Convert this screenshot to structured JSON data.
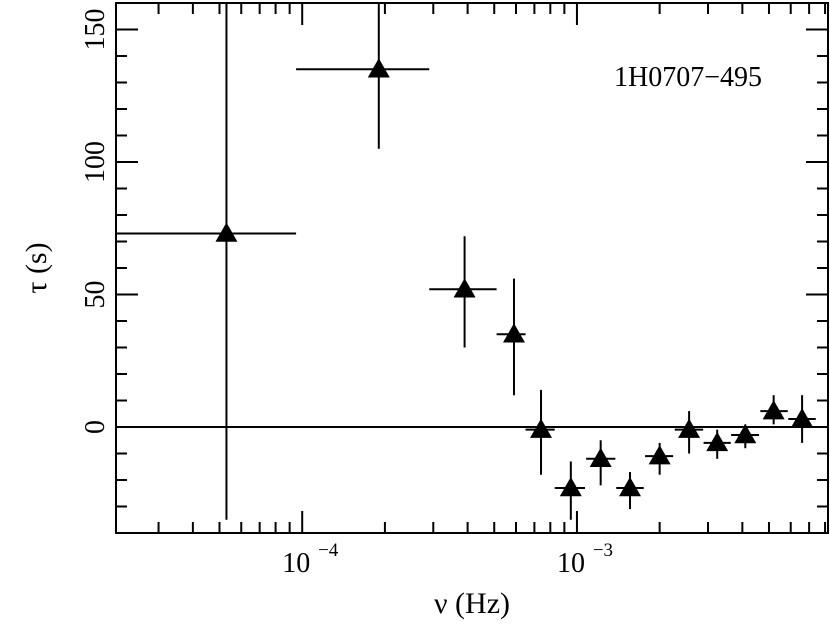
{
  "chart_data": {
    "type": "scatter",
    "title": "",
    "xlabel": "ν (Hz)",
    "ylabel": "τ (s)",
    "x_scale": "log",
    "xlim": [
      2.1e-05,
      0.0082
    ],
    "ylim": [
      -40,
      160
    ],
    "x_ticks": [
      {
        "value": 0.0001,
        "base": "10",
        "exp": "−4"
      },
      {
        "value": 0.001,
        "base": "10",
        "exp": "−3"
      }
    ],
    "y_ticks": [
      0,
      50,
      100,
      150
    ],
    "zero_line": 0,
    "annotation": "1H0707−495",
    "marker": "filled-triangle",
    "grid": false,
    "points": [
      {
        "x": 5.3e-05,
        "y": 73,
        "x_lo": 2.1e-05,
        "x_hi": 9.5e-05,
        "y_lo": -35,
        "y_hi": 160
      },
      {
        "x": 0.00019,
        "y": 135,
        "x_lo": 9.5e-05,
        "x_hi": 0.00029,
        "y_lo": 105,
        "y_hi": 160
      },
      {
        "x": 0.00039,
        "y": 52,
        "x_lo": 0.00029,
        "x_hi": 0.00051,
        "y_lo": 30,
        "y_hi": 72
      },
      {
        "x": 0.00059,
        "y": 35,
        "x_lo": 0.00051,
        "x_hi": 0.00065,
        "y_lo": 12,
        "y_hi": 56
      },
      {
        "x": 0.00074,
        "y": -1,
        "x_lo": 0.00065,
        "x_hi": 0.00083,
        "y_lo": -18,
        "y_hi": 14
      },
      {
        "x": 0.00095,
        "y": -23,
        "x_lo": 0.00083,
        "x_hi": 0.00107,
        "y_lo": -35,
        "y_hi": -13
      },
      {
        "x": 0.00122,
        "y": -12,
        "x_lo": 0.00108,
        "x_hi": 0.00138,
        "y_lo": -22,
        "y_hi": -5
      },
      {
        "x": 0.00156,
        "y": -23,
        "x_lo": 0.00139,
        "x_hi": 0.00175,
        "y_lo": -31,
        "y_hi": -17
      },
      {
        "x": 0.002,
        "y": -11,
        "x_lo": 0.00177,
        "x_hi": 0.00224,
        "y_lo": -18,
        "y_hi": -6
      },
      {
        "x": 0.00256,
        "y": -1,
        "x_lo": 0.00227,
        "x_hi": 0.00288,
        "y_lo": -10,
        "y_hi": 6
      },
      {
        "x": 0.00324,
        "y": -6,
        "x_lo": 0.00289,
        "x_hi": 0.00363,
        "y_lo": -12,
        "y_hi": -1
      },
      {
        "x": 0.0041,
        "y": -3,
        "x_lo": 0.00364,
        "x_hi": 0.0046,
        "y_lo": -8,
        "y_hi": 1
      },
      {
        "x": 0.0052,
        "y": 6,
        "x_lo": 0.00465,
        "x_hi": 0.00585,
        "y_lo": 1,
        "y_hi": 12
      },
      {
        "x": 0.0066,
        "y": 3,
        "x_lo": 0.00588,
        "x_hi": 0.0074,
        "y_lo": -6,
        "y_hi": 12
      }
    ]
  }
}
